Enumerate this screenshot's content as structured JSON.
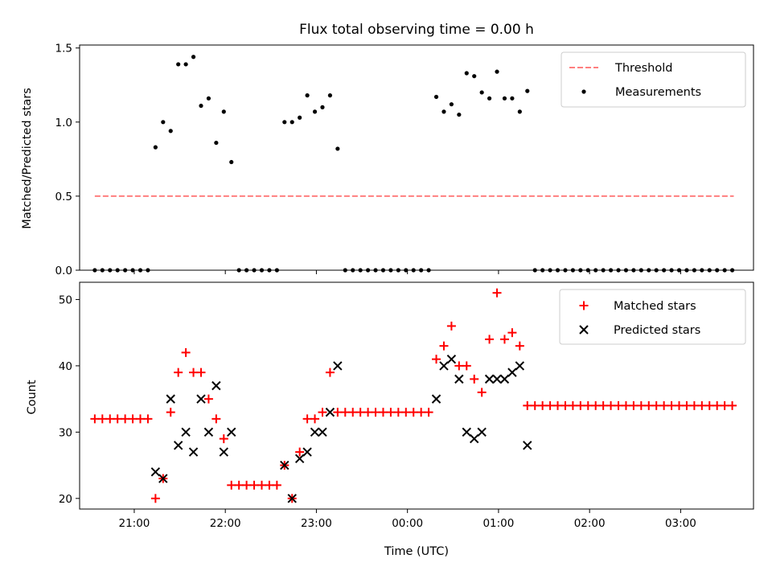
{
  "chart_data": [
    {
      "type": "scatter",
      "title": "Flux total observing time = 0.00 h",
      "xlabel": "",
      "ylabel": "Matched/Predicted stars",
      "ylim": [
        0,
        1.52
      ],
      "yticks": [
        0.0,
        0.5,
        1.0,
        1.5
      ],
      "ytick_labels": [
        "0.0",
        "0.5",
        "1.0",
        "1.5"
      ],
      "xlim": [
        "20:24",
        "03:48"
      ],
      "xticks": [
        "21:00",
        "22:00",
        "23:00",
        "00:00",
        "01:00",
        "02:00",
        "03:00"
      ],
      "legend_position": "upper right",
      "threshold": {
        "name": "Threshold",
        "value": 0.5,
        "x_start": "20:34",
        "x_end": "03:35",
        "color": "#ff7f7f",
        "style": "dashed"
      },
      "series": [
        {
          "name": "Measurements",
          "marker": "dot",
          "color": "#000000",
          "points": [
            [
              "20:34",
              0
            ],
            [
              "20:39",
              0
            ],
            [
              "20:44",
              0
            ],
            [
              "20:49",
              0
            ],
            [
              "20:54",
              0
            ],
            [
              "20:59",
              0
            ],
            [
              "21:04",
              0
            ],
            [
              "21:09",
              0
            ],
            [
              "21:14",
              0.83
            ],
            [
              "21:19",
              1.0
            ],
            [
              "21:24",
              0.94
            ],
            [
              "21:29",
              1.39
            ],
            [
              "21:34",
              1.39
            ],
            [
              "21:39",
              1.44
            ],
            [
              "21:44",
              1.11
            ],
            [
              "21:49",
              1.16
            ],
            [
              "21:54",
              0.86
            ],
            [
              "21:59",
              1.07
            ],
            [
              "22:04",
              0.73
            ],
            [
              "22:09",
              0
            ],
            [
              "22:14",
              0
            ],
            [
              "22:19",
              0
            ],
            [
              "22:24",
              0
            ],
            [
              "22:29",
              0
            ],
            [
              "22:34",
              0
            ],
            [
              "22:39",
              1.0
            ],
            [
              "22:44",
              1.0
            ],
            [
              "22:49",
              1.03
            ],
            [
              "22:54",
              1.18
            ],
            [
              "22:59",
              1.07
            ],
            [
              "23:04",
              1.1
            ],
            [
              "23:09",
              1.18
            ],
            [
              "23:14",
              0.82
            ],
            [
              "23:19",
              0
            ],
            [
              "23:24",
              0
            ],
            [
              "23:29",
              0
            ],
            [
              "23:34",
              0
            ],
            [
              "23:39",
              0
            ],
            [
              "23:44",
              0
            ],
            [
              "23:49",
              0
            ],
            [
              "23:54",
              0
            ],
            [
              "23:59",
              0
            ],
            [
              "00:04",
              0
            ],
            [
              "00:09",
              0
            ],
            [
              "00:14",
              0
            ],
            [
              "00:19",
              1.17
            ],
            [
              "00:24",
              1.07
            ],
            [
              "00:29",
              1.12
            ],
            [
              "00:34",
              1.05
            ],
            [
              "00:39",
              1.33
            ],
            [
              "00:44",
              1.31
            ],
            [
              "00:49",
              1.2
            ],
            [
              "00:54",
              1.16
            ],
            [
              "00:59",
              1.34
            ],
            [
              "01:04",
              1.16
            ],
            [
              "01:09",
              1.16
            ],
            [
              "01:14",
              1.07
            ],
            [
              "01:19",
              1.21
            ],
            [
              "01:24",
              0
            ],
            [
              "01:29",
              0
            ],
            [
              "01:34",
              0
            ],
            [
              "01:39",
              0
            ],
            [
              "01:44",
              0
            ],
            [
              "01:49",
              0
            ],
            [
              "01:54",
              0
            ],
            [
              "01:59",
              0
            ],
            [
              "02:04",
              0
            ],
            [
              "02:09",
              0
            ],
            [
              "02:14",
              0
            ],
            [
              "02:19",
              0
            ],
            [
              "02:24",
              0
            ],
            [
              "02:29",
              0
            ],
            [
              "02:34",
              0
            ],
            [
              "02:39",
              0
            ],
            [
              "02:44",
              0
            ],
            [
              "02:49",
              0
            ],
            [
              "02:54",
              0
            ],
            [
              "02:59",
              0
            ],
            [
              "03:04",
              0
            ],
            [
              "03:09",
              0
            ],
            [
              "03:14",
              0
            ],
            [
              "03:19",
              0
            ],
            [
              "03:24",
              0
            ],
            [
              "03:29",
              0
            ],
            [
              "03:34",
              0
            ]
          ]
        }
      ]
    },
    {
      "type": "scatter",
      "title": "",
      "xlabel": "Time (UTC)",
      "ylabel": "Count",
      "ylim": [
        18.4,
        52.6
      ],
      "yticks": [
        20,
        30,
        40,
        50
      ],
      "ytick_labels": [
        "20",
        "30",
        "40",
        "50"
      ],
      "xlim": [
        "20:24",
        "03:48"
      ],
      "xticks": [
        "21:00",
        "22:00",
        "23:00",
        "00:00",
        "01:00",
        "02:00",
        "03:00"
      ],
      "xtick_labels": [
        "21:00",
        "22:00",
        "23:00",
        "00:00",
        "01:00",
        "02:00",
        "03:00"
      ],
      "legend_position": "upper right",
      "series": [
        {
          "name": "Matched stars",
          "marker": "plus",
          "color": "#ff0000",
          "points": [
            [
              "20:34",
              32
            ],
            [
              "20:39",
              32
            ],
            [
              "20:44",
              32
            ],
            [
              "20:49",
              32
            ],
            [
              "20:54",
              32
            ],
            [
              "20:59",
              32
            ],
            [
              "21:04",
              32
            ],
            [
              "21:09",
              32
            ],
            [
              "21:14",
              20
            ],
            [
              "21:19",
              23
            ],
            [
              "21:24",
              33
            ],
            [
              "21:29",
              39
            ],
            [
              "21:34",
              42
            ],
            [
              "21:39",
              39
            ],
            [
              "21:44",
              39
            ],
            [
              "21:49",
              35
            ],
            [
              "21:54",
              32
            ],
            [
              "21:59",
              29
            ],
            [
              "22:04",
              22
            ],
            [
              "22:09",
              22
            ],
            [
              "22:14",
              22
            ],
            [
              "22:19",
              22
            ],
            [
              "22:24",
              22
            ],
            [
              "22:29",
              22
            ],
            [
              "22:34",
              22
            ],
            [
              "22:39",
              25
            ],
            [
              "22:44",
              20
            ],
            [
              "22:49",
              27
            ],
            [
              "22:54",
              32
            ],
            [
              "22:59",
              32
            ],
            [
              "23:04",
              33
            ],
            [
              "23:09",
              39
            ],
            [
              "23:14",
              33
            ],
            [
              "23:19",
              33
            ],
            [
              "23:24",
              33
            ],
            [
              "23:29",
              33
            ],
            [
              "23:34",
              33
            ],
            [
              "23:39",
              33
            ],
            [
              "23:44",
              33
            ],
            [
              "23:49",
              33
            ],
            [
              "23:54",
              33
            ],
            [
              "23:59",
              33
            ],
            [
              "00:04",
              33
            ],
            [
              "00:09",
              33
            ],
            [
              "00:14",
              33
            ],
            [
              "00:19",
              41
            ],
            [
              "00:24",
              43
            ],
            [
              "00:29",
              46
            ],
            [
              "00:34",
              40
            ],
            [
              "00:39",
              40
            ],
            [
              "00:44",
              38
            ],
            [
              "00:49",
              36
            ],
            [
              "00:54",
              44
            ],
            [
              "00:59",
              51
            ],
            [
              "01:04",
              44
            ],
            [
              "01:09",
              45
            ],
            [
              "01:14",
              43
            ],
            [
              "01:19",
              34
            ],
            [
              "01:24",
              34
            ],
            [
              "01:29",
              34
            ],
            [
              "01:34",
              34
            ],
            [
              "01:39",
              34
            ],
            [
              "01:44",
              34
            ],
            [
              "01:49",
              34
            ],
            [
              "01:54",
              34
            ],
            [
              "01:59",
              34
            ],
            [
              "02:04",
              34
            ],
            [
              "02:09",
              34
            ],
            [
              "02:14",
              34
            ],
            [
              "02:19",
              34
            ],
            [
              "02:24",
              34
            ],
            [
              "02:29",
              34
            ],
            [
              "02:34",
              34
            ],
            [
              "02:39",
              34
            ],
            [
              "02:44",
              34
            ],
            [
              "02:49",
              34
            ],
            [
              "02:54",
              34
            ],
            [
              "02:59",
              34
            ],
            [
              "03:04",
              34
            ],
            [
              "03:09",
              34
            ],
            [
              "03:14",
              34
            ],
            [
              "03:19",
              34
            ],
            [
              "03:24",
              34
            ],
            [
              "03:29",
              34
            ],
            [
              "03:34",
              34
            ]
          ]
        },
        {
          "name": "Predicted stars",
          "marker": "x",
          "color": "#000000",
          "points": [
            [
              "21:14",
              24
            ],
            [
              "21:19",
              23
            ],
            [
              "21:24",
              35
            ],
            [
              "21:29",
              28
            ],
            [
              "21:34",
              30
            ],
            [
              "21:39",
              27
            ],
            [
              "21:44",
              35
            ],
            [
              "21:49",
              30
            ],
            [
              "21:54",
              37
            ],
            [
              "21:59",
              27
            ],
            [
              "22:04",
              30
            ],
            [
              "22:39",
              25
            ],
            [
              "22:44",
              20
            ],
            [
              "22:49",
              26
            ],
            [
              "22:54",
              27
            ],
            [
              "22:59",
              30
            ],
            [
              "23:04",
              30
            ],
            [
              "23:09",
              33
            ],
            [
              "23:14",
              40
            ],
            [
              "00:19",
              35
            ],
            [
              "00:24",
              40
            ],
            [
              "00:29",
              41
            ],
            [
              "00:34",
              38
            ],
            [
              "00:39",
              30
            ],
            [
              "00:44",
              29
            ],
            [
              "00:49",
              30
            ],
            [
              "00:54",
              38
            ],
            [
              "00:59",
              38
            ],
            [
              "01:04",
              38
            ],
            [
              "01:09",
              39
            ],
            [
              "01:14",
              40
            ],
            [
              "01:19",
              28
            ]
          ]
        }
      ]
    }
  ]
}
